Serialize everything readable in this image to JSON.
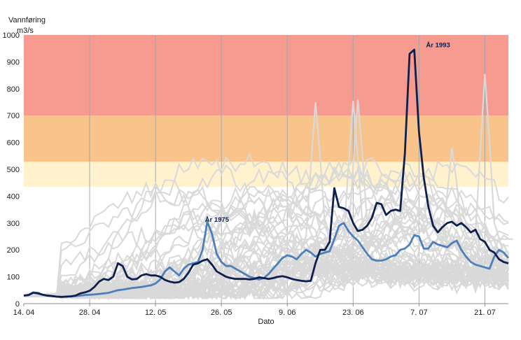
{
  "chart_data": {
    "type": "line",
    "title": "",
    "ylabel_line1": "Vannføring",
    "ylabel_line2": "m3/s",
    "xlabel": "Dato",
    "ylim": [
      0,
      1000
    ],
    "yticks": [
      0,
      100,
      200,
      300,
      400,
      500,
      600,
      700,
      800,
      900,
      1000
    ],
    "xlim": [
      0,
      103
    ],
    "xticks": [
      {
        "day": 0,
        "label": "14. 04"
      },
      {
        "day": 14,
        "label": "28. 04"
      },
      {
        "day": 28,
        "label": "12. 05"
      },
      {
        "day": 42,
        "label": "26. 05"
      },
      {
        "day": 56,
        "label": "9. 06"
      },
      {
        "day": 70,
        "label": "23. 06"
      },
      {
        "day": 84,
        "label": "7. 07"
      },
      {
        "day": 98,
        "label": "21. 07"
      }
    ],
    "vertical_grid_days": [
      14,
      28,
      42,
      56,
      70,
      84,
      98
    ],
    "bands": [
      {
        "from": 435,
        "to": 528,
        "color": "#fff2cc"
      },
      {
        "from": 528,
        "to": 700,
        "color": "#f9c48b"
      },
      {
        "from": 700,
        "to": 1000,
        "color": "#f79a90"
      }
    ],
    "colors": {
      "other_years": "#d9d9d9",
      "highlight_1993": "#0d1f4d",
      "highlight_1975": "#4d7fba"
    },
    "background_series_note": "many other years shown in light grey",
    "annotations": [
      {
        "text": "År 1993",
        "day": 85.5,
        "value": 955
      },
      {
        "text": "År 1975",
        "day": 38.5,
        "value": 305
      }
    ],
    "series": [
      {
        "name": "År 1993",
        "color": "#0d1f4d",
        "x": [
          0,
          1,
          2,
          3,
          4,
          5,
          6,
          7,
          8,
          9,
          10,
          11,
          12,
          13,
          14,
          15,
          16,
          17,
          18,
          19,
          20,
          21,
          22,
          23,
          24,
          25,
          26,
          27,
          28,
          29,
          30,
          31,
          32,
          33,
          34,
          35,
          36,
          37,
          38,
          39,
          40,
          41,
          42,
          43,
          44,
          45,
          46,
          47,
          48,
          49,
          50,
          51,
          52,
          53,
          54,
          55,
          56,
          57,
          58,
          59,
          60,
          61,
          62,
          63,
          64,
          65,
          66,
          67,
          68,
          69,
          70,
          71,
          72,
          73,
          74,
          75,
          76,
          77,
          78,
          79,
          80,
          81,
          82,
          83,
          84,
          85,
          86,
          87,
          88,
          89,
          90,
          91,
          92,
          93,
          94,
          95,
          96,
          97,
          98,
          99,
          100,
          101,
          102,
          103
        ],
        "values": [
          30,
          32,
          40,
          38,
          33,
          30,
          28,
          26,
          25,
          26,
          27,
          30,
          38,
          42,
          48,
          62,
          82,
          92,
          88,
          100,
          150,
          140,
          100,
          90,
          92,
          105,
          110,
          105,
          105,
          100,
          88,
          82,
          78,
          80,
          92,
          115,
          145,
          150,
          160,
          165,
          145,
          120,
          110,
          100,
          95,
          92,
          92,
          92,
          90,
          92,
          98,
          95,
          92,
          95,
          100,
          102,
          98,
          92,
          88,
          85,
          83,
          85,
          150,
          200,
          200,
          230,
          430,
          360,
          355,
          345,
          300,
          270,
          275,
          290,
          320,
          375,
          370,
          330,
          345,
          350,
          345,
          560,
          930,
          945,
          640,
          470,
          360,
          290,
          265,
          285,
          300,
          305,
          290,
          300,
          285,
          265,
          275,
          240,
          230,
          200,
          190,
          165,
          155,
          150
        ]
      },
      {
        "name": "År 1975",
        "color": "#4d7fba",
        "x": [
          0,
          1,
          2,
          3,
          4,
          5,
          6,
          7,
          8,
          9,
          10,
          11,
          12,
          13,
          14,
          15,
          16,
          17,
          18,
          19,
          20,
          21,
          22,
          23,
          24,
          25,
          26,
          27,
          28,
          29,
          30,
          31,
          32,
          33,
          34,
          35,
          36,
          37,
          38,
          39,
          40,
          41,
          42,
          43,
          44,
          45,
          46,
          47,
          48,
          49,
          50,
          51,
          52,
          53,
          54,
          55,
          56,
          57,
          58,
          59,
          60,
          61,
          62,
          63,
          64,
          65,
          66,
          67,
          68,
          69,
          70,
          71,
          72,
          73,
          74,
          75,
          76,
          77,
          78,
          79,
          80,
          81,
          82,
          83,
          84,
          85,
          86,
          87,
          88,
          89,
          90,
          91,
          92,
          93,
          94,
          95,
          96,
          97,
          98,
          99,
          100,
          101,
          102,
          103
        ],
        "values": [
          30,
          32,
          42,
          40,
          33,
          30,
          28,
          26,
          25,
          26,
          27,
          28,
          30,
          32,
          33,
          34,
          36,
          38,
          40,
          45,
          50,
          52,
          55,
          58,
          60,
          62,
          65,
          68,
          75,
          90,
          120,
          135,
          120,
          105,
          130,
          145,
          150,
          155,
          200,
          305,
          260,
          185,
          155,
          140,
          140,
          130,
          120,
          110,
          100,
          95,
          90,
          95,
          110,
          130,
          150,
          170,
          180,
          175,
          165,
          185,
          200,
          190,
          175,
          185,
          190,
          195,
          240,
          290,
          300,
          270,
          250,
          235,
          210,
          185,
          165,
          160,
          160,
          165,
          175,
          180,
          200,
          205,
          220,
          255,
          250,
          205,
          205,
          230,
          220,
          215,
          210,
          225,
          235,
          200,
          175,
          155,
          145,
          140,
          135,
          130,
          175,
          200,
          190,
          170
        ]
      }
    ]
  }
}
